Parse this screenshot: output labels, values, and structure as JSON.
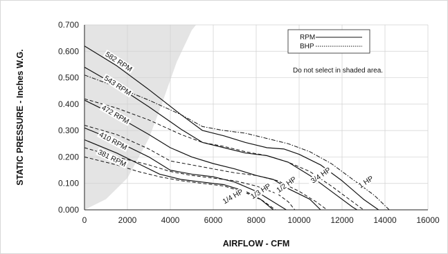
{
  "chart_data": {
    "type": "line",
    "title": "",
    "xlabel": "AIRFLOW - CFM",
    "ylabel": "STATIC PRESSURE - Inches W.G.",
    "xlim": [
      0,
      16000
    ],
    "ylim": [
      0,
      0.7
    ],
    "x_ticks": [
      "0",
      "2000",
      "4000",
      "6000",
      "8000",
      "10000",
      "12000",
      "14000",
      "16000"
    ],
    "y_ticks": [
      "0.000",
      "0.100",
      "0.200",
      "0.300",
      "0.400",
      "0.500",
      "0.600",
      "0.700"
    ],
    "grid": true,
    "legend": {
      "placement": "top-right",
      "entries": [
        {
          "label": "RPM",
          "style": "solid"
        },
        {
          "label": "BHP",
          "style": "dotted"
        }
      ],
      "note": "Do not select in shaded area."
    },
    "shaded_region": {
      "description": "non-selectable region",
      "boundary": [
        [
          0,
          0
        ],
        [
          1000,
          0.04
        ],
        [
          2000,
          0.12
        ],
        [
          3000,
          0.27
        ],
        [
          3600,
          0.4
        ],
        [
          4300,
          0.56
        ],
        [
          5000,
          0.68
        ],
        [
          5200,
          0.7
        ]
      ]
    },
    "rpm_series": [
      {
        "name": "582 RPM",
        "points": [
          [
            0,
            0.62
          ],
          [
            1500,
            0.545
          ],
          [
            3000,
            0.455
          ],
          [
            4500,
            0.36
          ],
          [
            5500,
            0.3
          ],
          [
            6500,
            0.28
          ],
          [
            7500,
            0.255
          ],
          [
            8500,
            0.235
          ],
          [
            9300,
            0.23
          ],
          [
            10000,
            0.21
          ],
          [
            11000,
            0.17
          ],
          [
            12000,
            0.11
          ],
          [
            13000,
            0.04
          ],
          [
            13700,
            0.0
          ]
        ]
      },
      {
        "name": "543 RPM",
        "points": [
          [
            0,
            0.54
          ],
          [
            1500,
            0.47
          ],
          [
            3000,
            0.39
          ],
          [
            4500,
            0.305
          ],
          [
            5500,
            0.255
          ],
          [
            6500,
            0.235
          ],
          [
            7500,
            0.215
          ],
          [
            8500,
            0.205
          ],
          [
            9500,
            0.18
          ],
          [
            10500,
            0.13
          ],
          [
            11500,
            0.07
          ],
          [
            12500,
            0.01
          ],
          [
            12700,
            0.0
          ]
        ]
      },
      {
        "name": "472 RPM",
        "points": [
          [
            0,
            0.415
          ],
          [
            1500,
            0.355
          ],
          [
            3000,
            0.285
          ],
          [
            4000,
            0.235
          ],
          [
            5000,
            0.2
          ],
          [
            6000,
            0.175
          ],
          [
            7000,
            0.155
          ],
          [
            8000,
            0.13
          ],
          [
            8800,
            0.115
          ],
          [
            9500,
            0.08
          ],
          [
            10500,
            0.04
          ],
          [
            11000,
            0.0
          ]
        ]
      },
      {
        "name": "410 RPM",
        "points": [
          [
            0,
            0.31
          ],
          [
            1500,
            0.26
          ],
          [
            3000,
            0.2
          ],
          [
            4000,
            0.15
          ],
          [
            5000,
            0.135
          ],
          [
            6000,
            0.125
          ],
          [
            7000,
            0.105
          ],
          [
            8000,
            0.07
          ],
          [
            8800,
            0.03
          ],
          [
            9400,
            0.0
          ]
        ]
      },
      {
        "name": "381 RPM",
        "points": [
          [
            0,
            0.265
          ],
          [
            1500,
            0.215
          ],
          [
            2500,
            0.175
          ],
          [
            3500,
            0.135
          ],
          [
            4500,
            0.115
          ],
          [
            5500,
            0.105
          ],
          [
            6500,
            0.095
          ],
          [
            7500,
            0.07
          ],
          [
            8200,
            0.04
          ],
          [
            8800,
            0.0
          ]
        ]
      }
    ],
    "bhp_series": [
      {
        "name": "1 HP",
        "points": [
          [
            0,
            0.51
          ],
          [
            1500,
            0.465
          ],
          [
            3000,
            0.415
          ],
          [
            4500,
            0.36
          ],
          [
            5500,
            0.315
          ],
          [
            6500,
            0.3
          ],
          [
            7500,
            0.29
          ],
          [
            8500,
            0.27
          ],
          [
            9500,
            0.25
          ],
          [
            10500,
            0.22
          ],
          [
            11500,
            0.175
          ],
          [
            12500,
            0.115
          ],
          [
            13500,
            0.055
          ],
          [
            14200,
            0.0
          ]
        ]
      },
      {
        "name": "3/4 HP",
        "points": [
          [
            0,
            0.42
          ],
          [
            1500,
            0.385
          ],
          [
            3000,
            0.34
          ],
          [
            4500,
            0.285
          ],
          [
            5500,
            0.255
          ],
          [
            6500,
            0.24
          ],
          [
            7500,
            0.22
          ],
          [
            8500,
            0.205
          ],
          [
            9500,
            0.18
          ],
          [
            10500,
            0.145
          ],
          [
            11500,
            0.09
          ],
          [
            12500,
            0.03
          ],
          [
            13000,
            0.0
          ]
        ]
      },
      {
        "name": "1/2 HP",
        "points": [
          [
            0,
            0.32
          ],
          [
            1500,
            0.285
          ],
          [
            3000,
            0.23
          ],
          [
            4000,
            0.185
          ],
          [
            5000,
            0.17
          ],
          [
            6000,
            0.155
          ],
          [
            7000,
            0.14
          ],
          [
            8000,
            0.13
          ],
          [
            9000,
            0.11
          ],
          [
            10000,
            0.07
          ],
          [
            10800,
            0.03
          ],
          [
            11300,
            0.0
          ]
        ]
      },
      {
        "name": "1/3 HP",
        "points": [
          [
            0,
            0.235
          ],
          [
            1500,
            0.2
          ],
          [
            3000,
            0.17
          ],
          [
            4000,
            0.145
          ],
          [
            5000,
            0.13
          ],
          [
            6000,
            0.12
          ],
          [
            7000,
            0.11
          ],
          [
            8000,
            0.09
          ],
          [
            9000,
            0.06
          ],
          [
            9500,
            0.03
          ],
          [
            9800,
            0.0
          ]
        ]
      },
      {
        "name": "1/4 HP",
        "points": [
          [
            0,
            0.2
          ],
          [
            1500,
            0.17
          ],
          [
            2500,
            0.145
          ],
          [
            3500,
            0.125
          ],
          [
            4500,
            0.11
          ],
          [
            5500,
            0.1
          ],
          [
            6500,
            0.09
          ],
          [
            7500,
            0.065
          ],
          [
            8300,
            0.035
          ],
          [
            8900,
            0.0
          ]
        ]
      }
    ],
    "annotations": [
      {
        "text": "582 RPM",
        "x": 1550,
        "y": 0.555,
        "angle_deg": 33
      },
      {
        "text": "543 RPM",
        "x": 1500,
        "y": 0.465,
        "angle_deg": 33
      },
      {
        "text": "472 RPM",
        "x": 1400,
        "y": 0.355,
        "angle_deg": 30
      },
      {
        "text": "410 RPM",
        "x": 1300,
        "y": 0.255,
        "angle_deg": 28
      },
      {
        "text": "381 RPM",
        "x": 1250,
        "y": 0.19,
        "angle_deg": 26
      },
      {
        "text": "1 HP",
        "x": 13150,
        "y": 0.1,
        "angle_deg": -33
      },
      {
        "text": "3/4 HP",
        "x": 11050,
        "y": 0.125,
        "angle_deg": -35
      },
      {
        "text": "1/2 HP",
        "x": 9450,
        "y": 0.09,
        "angle_deg": -35
      },
      {
        "text": "1/3 HP",
        "x": 8250,
        "y": 0.065,
        "angle_deg": -33
      },
      {
        "text": "1/4 HP",
        "x": 6950,
        "y": 0.045,
        "angle_deg": -30
      }
    ]
  }
}
